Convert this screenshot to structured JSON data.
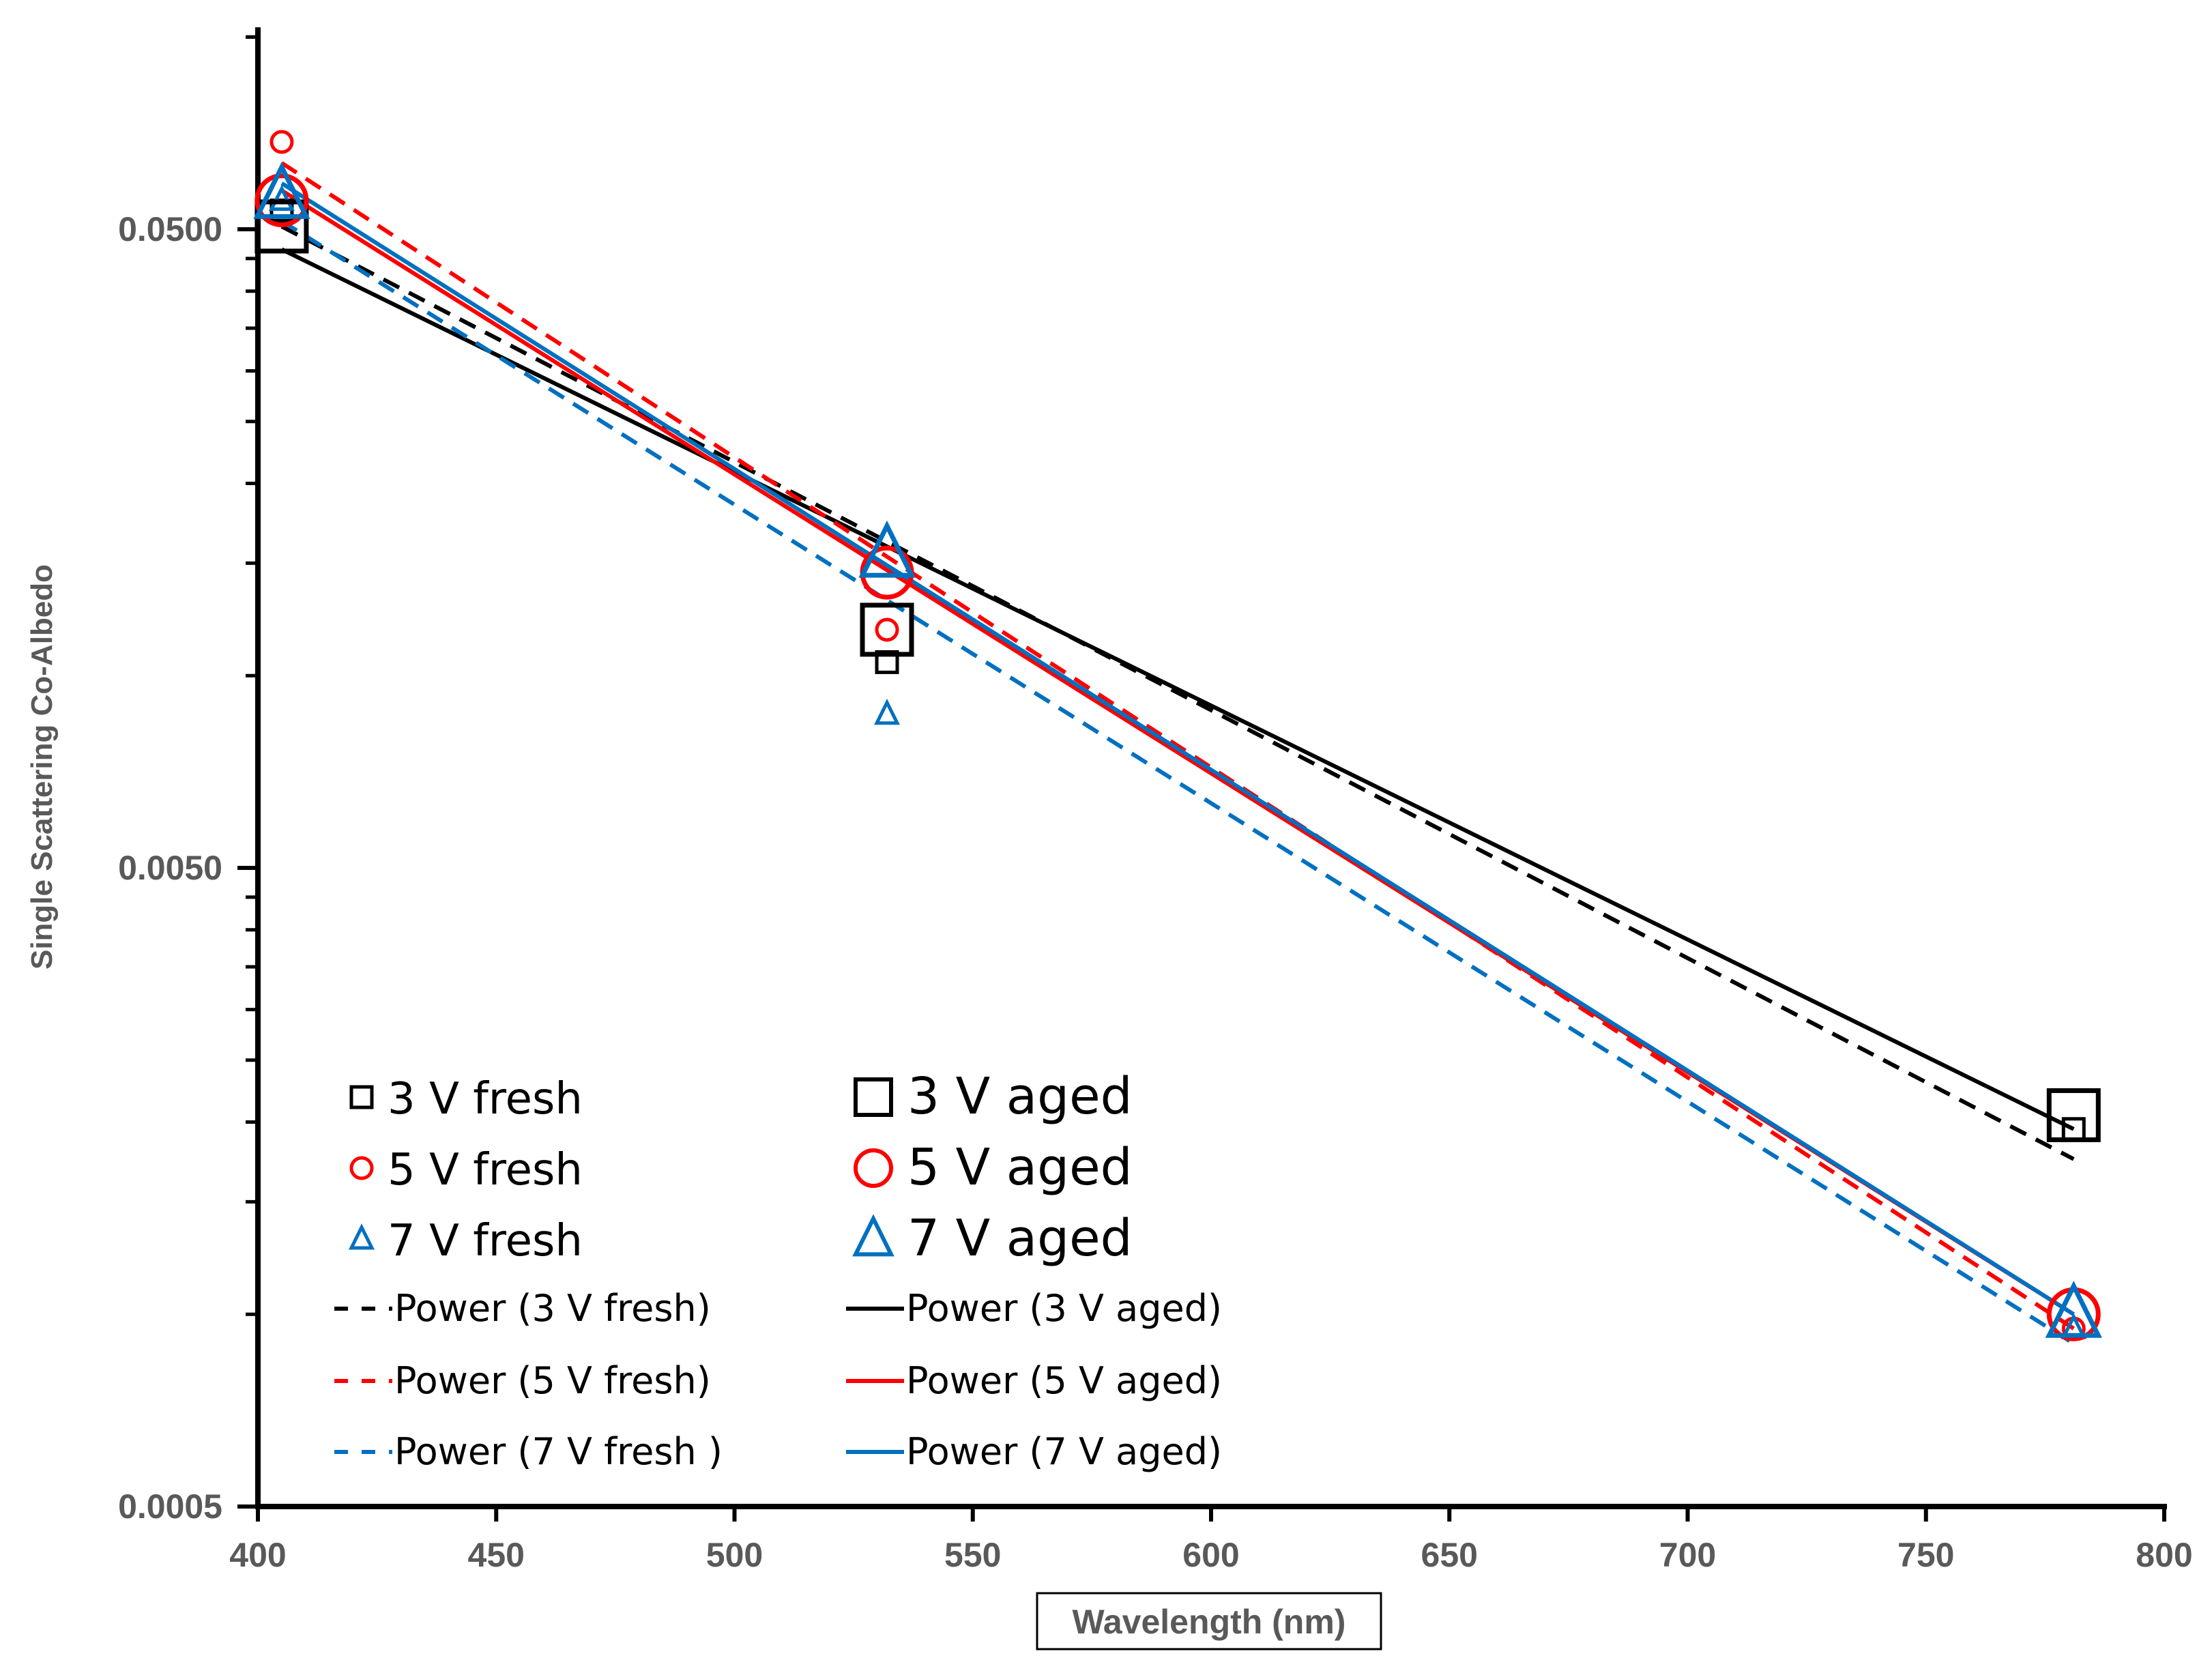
{
  "chart_data": {
    "type": "scatter",
    "title": "",
    "xlabel": "Wavelength (nm)",
    "ylabel": "Single Scattering Co-Albedo",
    "xlim": [
      400,
      800
    ],
    "ylim": [
      0.0005,
      0.1
    ],
    "yscale": "log",
    "x_ticks": [
      400,
      450,
      500,
      550,
      600,
      650,
      700,
      750,
      800
    ],
    "x_tick_labels": [
      "400",
      "450",
      "500",
      "550",
      "600",
      "650",
      "700",
      "750",
      "800"
    ],
    "y_ticks": [
      0.0005,
      0.005,
      0.05
    ],
    "y_tick_labels": [
      "0.0005",
      "0.0050",
      "0.0500"
    ],
    "grid": false,
    "legend_position": "bottom-left",
    "series": [
      {
        "name": "3 V fresh",
        "marker": "square",
        "marker_size": "small",
        "color": "#000000",
        "x": [
          405,
          532,
          781
        ],
        "y": [
          0.0535,
          0.0105,
          0.00195
        ]
      },
      {
        "name": "5 V fresh",
        "marker": "circle",
        "marker_size": "small",
        "color": "#ff0000",
        "x": [
          405,
          532,
          781
        ],
        "y": [
          0.0685,
          0.0118,
          0.00095
        ]
      },
      {
        "name": "7 V fresh",
        "marker": "triangle",
        "marker_size": "small",
        "color": "#0070c0",
        "x": [
          405,
          532,
          781
        ],
        "y": [
          0.0555,
          0.0087,
          0.00095
        ]
      },
      {
        "name": "3 V aged",
        "marker": "square",
        "marker_size": "large",
        "color": "#000000",
        "x": [
          405,
          532,
          781
        ],
        "y": [
          0.0505,
          0.0118,
          0.00205
        ]
      },
      {
        "name": "5 V aged",
        "marker": "circle",
        "marker_size": "large",
        "color": "#ff0000",
        "x": [
          405,
          532,
          781
        ],
        "y": [
          0.0555,
          0.0145,
          0.001
        ]
      },
      {
        "name": "7 V aged",
        "marker": "triangle",
        "marker_size": "large",
        "color": "#0070c0",
        "x": [
          405,
          532,
          781
        ],
        "y": [
          0.0565,
          0.0155,
          0.001
        ]
      }
    ],
    "trendlines": [
      {
        "name": "Power (3 V fresh)",
        "style": "dashed",
        "color": "#000000",
        "x": [
          405,
          781
        ],
        "y": [
          0.0505,
          0.00175
        ]
      },
      {
        "name": "Power (3 V aged)",
        "style": "solid",
        "color": "#000000",
        "x": [
          405,
          781
        ],
        "y": [
          0.0465,
          0.00195
        ]
      },
      {
        "name": "Power (5 V fresh)",
        "style": "dashed",
        "color": "#ff0000",
        "x": [
          405,
          781
        ],
        "y": [
          0.0635,
          0.00095
        ]
      },
      {
        "name": "Power (5 V aged)",
        "style": "solid",
        "color": "#ff0000",
        "x": [
          405,
          781
        ],
        "y": [
          0.0575,
          0.001
        ]
      },
      {
        "name": "Power (7 V fresh )",
        "style": "dashed",
        "color": "#0070c0",
        "x": [
          405,
          781
        ],
        "y": [
          0.0515,
          0.0009
        ]
      },
      {
        "name": "Power (7 V aged)",
        "style": "solid",
        "color": "#0070c0",
        "x": [
          405,
          781
        ],
        "y": [
          0.059,
          0.001
        ]
      }
    ]
  }
}
